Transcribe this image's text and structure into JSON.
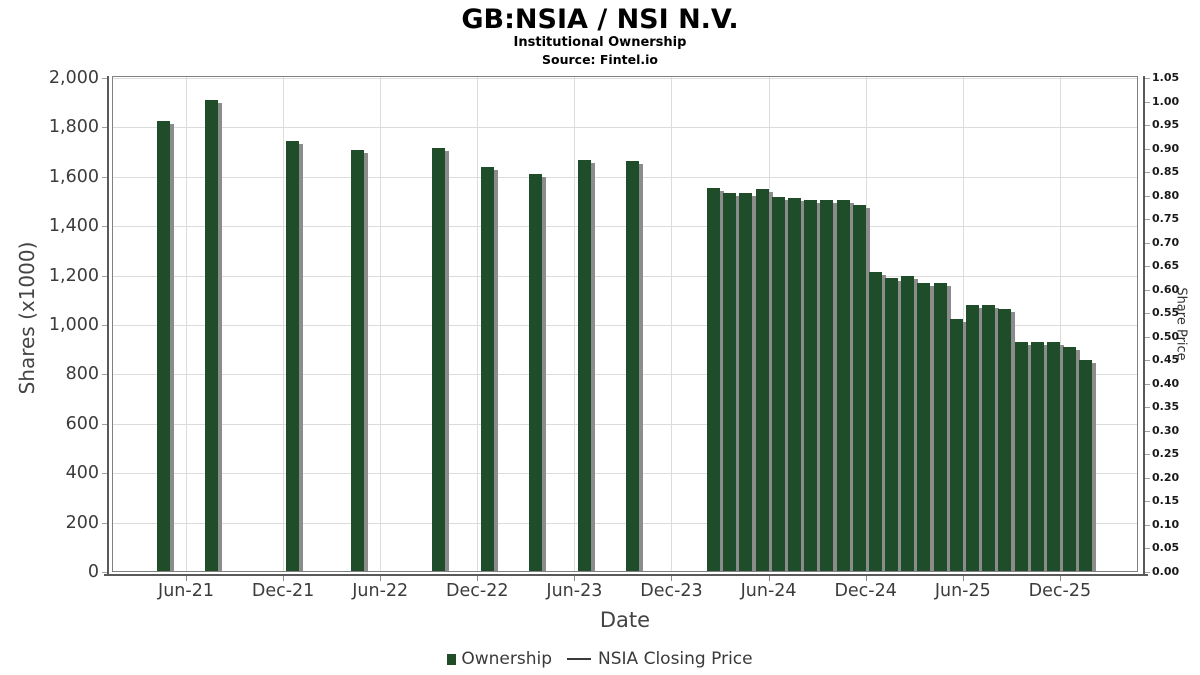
{
  "header": {
    "title": "GB:NSIA / NSI N.V.",
    "subtitle": "Institutional Ownership",
    "source": "Source: Fintel.io"
  },
  "chart_data": {
    "type": "bar",
    "title": "GB:NSIA / NSI N.V.",
    "subtitle": "Institutional Ownership",
    "source": "Source: Fintel.io",
    "xlabel": "Date",
    "ylabel_left": "Shares (x1000)",
    "ylabel_right": "Share Price",
    "grid": true,
    "legend_position": "bottom-center",
    "y_left_range": [
      0,
      2000
    ],
    "y_left_step": 200,
    "y_right_range": [
      0,
      1.05
    ],
    "y_right_step": 0.05,
    "y_left_ticks": [
      "2,000",
      "1,800",
      "1,600",
      "1,400",
      "1,200",
      "1,000",
      "800",
      "600",
      "400",
      "200",
      "0"
    ],
    "y_right_ticks": [
      "1.05",
      "1.00",
      "0.95",
      "0.90",
      "0.85",
      "0.80",
      "0.75",
      "0.70",
      "0.65",
      "0.60",
      "0.55",
      "0.50",
      "0.45",
      "0.40",
      "0.35",
      "0.30",
      "0.25",
      "0.20",
      "0.15",
      "0.10",
      "0.05",
      "0.00"
    ],
    "x_tick_labels": [
      "Jun-21",
      "Dec-21",
      "Jun-22",
      "Dec-22",
      "Jun-23",
      "Dec-23",
      "Jun-24",
      "Dec-24",
      "Jun-25",
      "Dec-25"
    ],
    "legend": [
      {
        "label": "Ownership",
        "marker": "square",
        "color": "#1f4c29"
      },
      {
        "label": "NSIA Closing Price",
        "marker": "line",
        "color": "#3a3a3a"
      }
    ],
    "series": [
      {
        "name": "Ownership",
        "units": "shares x1000",
        "points": [
          {
            "date": "Apr-21",
            "shares": 1825
          },
          {
            "date": "Jul-21",
            "shares": 1910
          },
          {
            "date": "Dec-21",
            "shares": 1745
          },
          {
            "date": "Apr-22",
            "shares": 1710
          },
          {
            "date": "Sep-22",
            "shares": 1715
          },
          {
            "date": "Dec-22",
            "shares": 1640
          },
          {
            "date": "Mar-23",
            "shares": 1610
          },
          {
            "date": "Jun-23",
            "shares": 1670
          },
          {
            "date": "Sep-23",
            "shares": 1665
          },
          {
            "date": "Feb-24",
            "shares": 1555
          },
          {
            "date": "Mar-24",
            "shares": 1535
          },
          {
            "date": "Apr-24",
            "shares": 1535
          },
          {
            "date": "May-24",
            "shares": 1550
          },
          {
            "date": "Jun-24",
            "shares": 1520
          },
          {
            "date": "Jul-24",
            "shares": 1515
          },
          {
            "date": "Aug-24",
            "shares": 1505
          },
          {
            "date": "Sep-24",
            "shares": 1505
          },
          {
            "date": "Oct-24",
            "shares": 1505
          },
          {
            "date": "Nov-24",
            "shares": 1485
          },
          {
            "date": "Dec-24",
            "shares": 1215
          },
          {
            "date": "Jan-25",
            "shares": 1190
          },
          {
            "date": "Feb-25",
            "shares": 1200
          },
          {
            "date": "Mar-25",
            "shares": 1170
          },
          {
            "date": "Apr-25",
            "shares": 1170
          },
          {
            "date": "May-25",
            "shares": 1025
          },
          {
            "date": "Jun-25",
            "shares": 1080
          },
          {
            "date": "Jul-25",
            "shares": 1080
          },
          {
            "date": "Aug-25",
            "shares": 1065
          },
          {
            "date": "Sep-25",
            "shares": 930
          },
          {
            "date": "Oct-25",
            "shares": 930
          },
          {
            "date": "Nov-25",
            "shares": 930
          },
          {
            "date": "Dec-25",
            "shares": 910
          },
          {
            "date": "Jan-26",
            "shares": 860
          }
        ]
      },
      {
        "name": "NSIA Closing Price",
        "units": "price",
        "points": [],
        "note": "line series listed in legend but no visible line in plot"
      }
    ]
  },
  "colors": {
    "bar": "#1f4c29",
    "bar_shadow": "#8c8c8c",
    "gridline": "#dcdcdc",
    "plot_frame": "#808080",
    "axis_spine": "#595959",
    "tick_text": "#3c3c3c",
    "background": "#ffffff"
  }
}
